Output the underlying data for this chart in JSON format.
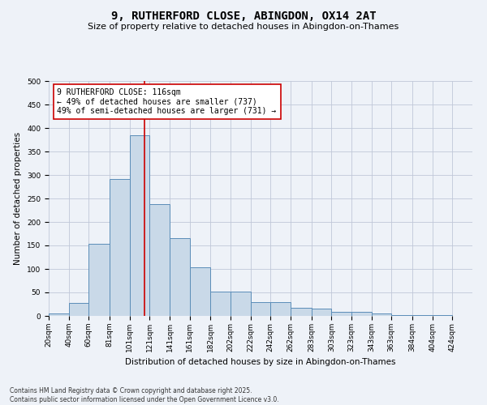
{
  "title": "9, RUTHERFORD CLOSE, ABINGDON, OX14 2AT",
  "subtitle": "Size of property relative to detached houses in Abingdon-on-Thames",
  "xlabel": "Distribution of detached houses by size in Abingdon-on-Thames",
  "ylabel": "Number of detached properties",
  "footnote1": "Contains HM Land Registry data © Crown copyright and database right 2025.",
  "footnote2": "Contains public sector information licensed under the Open Government Licence v3.0.",
  "annotation_title": "9 RUTHERFORD CLOSE: 116sqm",
  "annotation_line1": "← 49% of detached houses are smaller (737)",
  "annotation_line2": "49% of semi-detached houses are larger (731) →",
  "bar_left_edges": [
    20,
    40,
    60,
    81,
    101,
    121,
    141,
    161,
    182,
    202,
    222,
    242,
    262,
    283,
    303,
    323,
    343,
    363,
    384,
    404
  ],
  "bar_widths": [
    20,
    20,
    21,
    20,
    20,
    20,
    20,
    21,
    20,
    20,
    20,
    20,
    21,
    20,
    20,
    20,
    20,
    21,
    20,
    20
  ],
  "bar_heights": [
    5,
    27,
    153,
    291,
    384,
    238,
    165,
    103,
    52,
    52,
    30,
    30,
    18,
    15,
    8,
    8,
    5,
    2,
    2,
    1
  ],
  "tick_labels": [
    "20sqm",
    "40sqm",
    "60sqm",
    "81sqm",
    "101sqm",
    "121sqm",
    "141sqm",
    "161sqm",
    "182sqm",
    "202sqm",
    "222sqm",
    "242sqm",
    "262sqm",
    "283sqm",
    "303sqm",
    "323sqm",
    "343sqm",
    "363sqm",
    "384sqm",
    "404sqm",
    "424sqm"
  ],
  "tick_positions": [
    20,
    40,
    60,
    81,
    101,
    121,
    141,
    161,
    182,
    202,
    222,
    242,
    262,
    283,
    303,
    323,
    343,
    363,
    384,
    404,
    424
  ],
  "ylim": [
    0,
    500
  ],
  "yticks": [
    0,
    50,
    100,
    150,
    200,
    250,
    300,
    350,
    400,
    450,
    500
  ],
  "bar_color": "#c9d9e8",
  "bar_edge_color": "#5b8db8",
  "grid_color": "#c0c8d8",
  "vline_color": "#cc0000",
  "vline_x": 116,
  "bg_color": "#eef2f8",
  "annotation_box_color": "#ffffff",
  "annotation_box_edge": "#cc0000",
  "title_fontsize": 10,
  "subtitle_fontsize": 8,
  "axis_label_fontsize": 7.5,
  "tick_fontsize": 6.5,
  "annotation_fontsize": 7,
  "footnote_fontsize": 5.5
}
